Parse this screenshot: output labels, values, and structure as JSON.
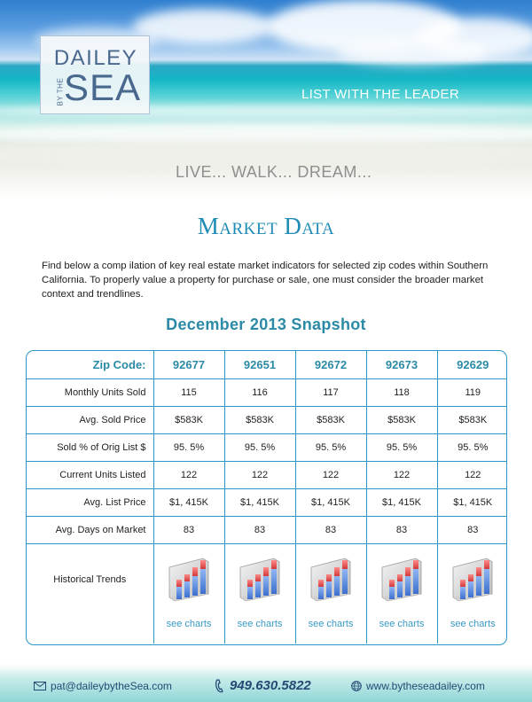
{
  "header": {
    "logo_top": "DAILEY",
    "logo_side": "BY THE",
    "logo_bottom": "SEA",
    "tagline": "LIST WITH THE LEADER",
    "motto": "LIVE... WALK... DREAM..."
  },
  "title": "Market Data",
  "intro": "Find below a comp ilation of key real estate market indicators for selected zip codes within Southern California. To properly value a property for purchase or sale, one must consider the broader market context and trendlines.",
  "snapshot_title": "December 2013 Snapshot",
  "table": {
    "header_label": "Zip Code:",
    "zips": [
      "92677",
      "92651",
      "92672",
      "92673",
      "92629"
    ],
    "rows": [
      {
        "label": "Monthly Units Sold",
        "values": [
          "115",
          "116",
          "117",
          "118",
          "119"
        ]
      },
      {
        "label": "Avg. Sold Price",
        "values": [
          "$583K",
          "$583K",
          "$583K",
          "$583K",
          "$583K"
        ]
      },
      {
        "label": "Sold % of Orig List $",
        "values": [
          "95. 5%",
          "95. 5%",
          "95. 5%",
          "95. 5%",
          "95. 5%"
        ]
      },
      {
        "label": "Current Units Listed",
        "values": [
          "122",
          "122",
          "122",
          "122",
          "122"
        ]
      },
      {
        "label": "Avg. List Price",
        "values": [
          "$1, 415K",
          "$1, 415K",
          "$1, 415K",
          "$1, 415K",
          "$1, 415K"
        ]
      },
      {
        "label": "Avg. Days on Market",
        "values": [
          "83",
          "83",
          "83",
          "83",
          "83"
        ]
      }
    ],
    "trends_label": "Historical Trends",
    "link_label": "see charts"
  },
  "footer": {
    "email": "pat@daileybytheSea.com",
    "phone": "949.630.5822",
    "website": "www.bytheseadailey.com"
  },
  "colors": {
    "accent": "#1f8cb5",
    "table_border": "#2a97c4",
    "footer_text": "#254a74"
  }
}
